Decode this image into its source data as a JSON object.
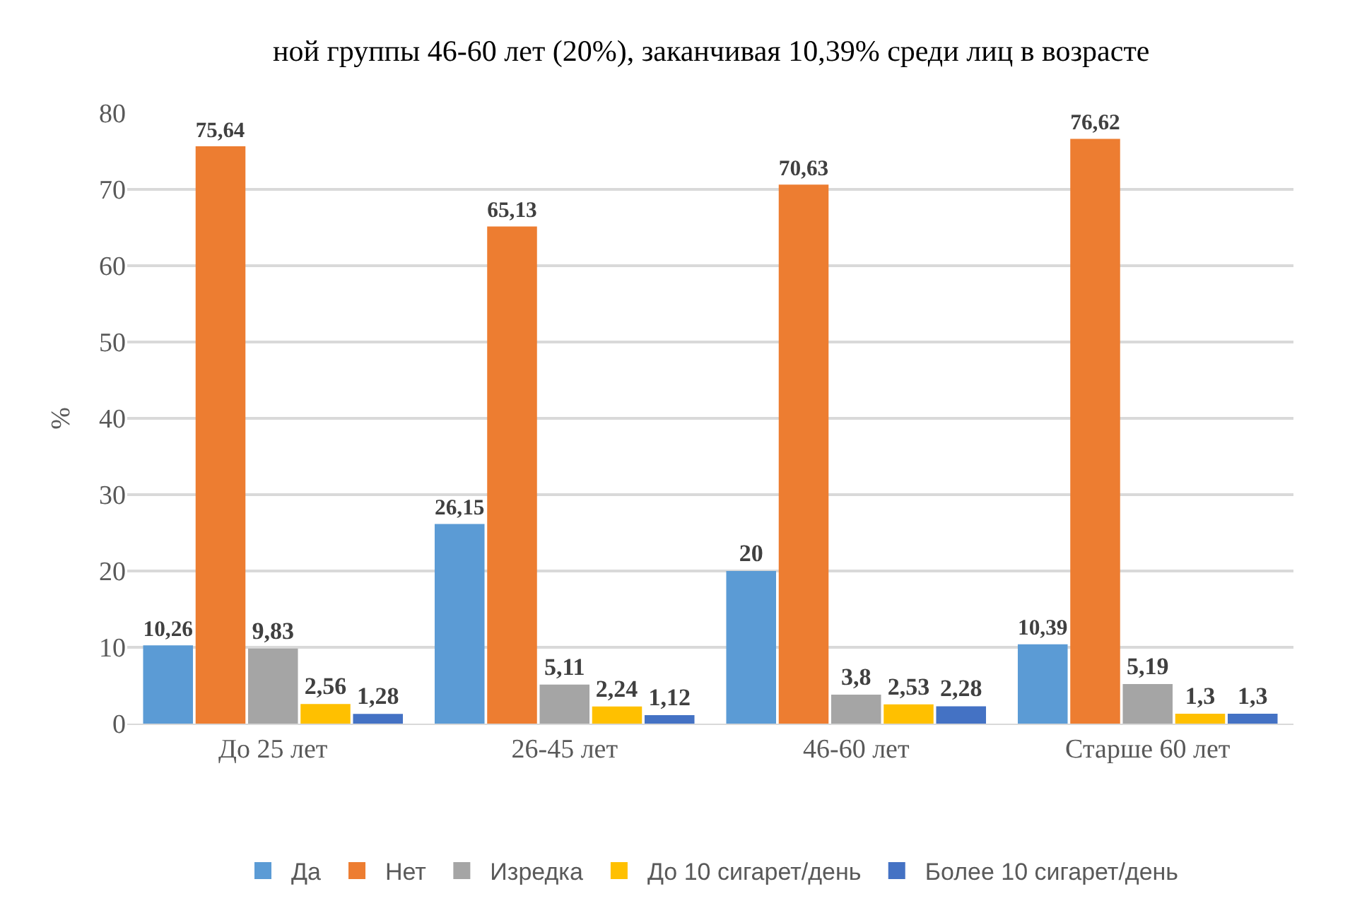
{
  "chart_data": {
    "type": "bar",
    "ylabel": "%",
    "categories": [
      "До 25 лет",
      "26-45 лет",
      "46-60 лет",
      "Старше 60 лет"
    ],
    "series": [
      {
        "name": "Да",
        "color": "#5b9bd5",
        "values": [
          10.26,
          26.15,
          20,
          10.39
        ],
        "value_labels": [
          "10,26",
          "26,15",
          "20",
          "10,39"
        ]
      },
      {
        "name": "Нет",
        "color": "#ed7d31",
        "values": [
          75.64,
          65.13,
          70.63,
          76.62
        ],
        "value_labels": [
          "75,64",
          "65,13",
          "70,63",
          "76,62"
        ]
      },
      {
        "name": "Изредка",
        "color": "#a5a5a5",
        "values": [
          9.83,
          5.11,
          3.8,
          5.19
        ],
        "value_labels": [
          "9,83",
          "5,11",
          "3,8",
          "5,19"
        ]
      },
      {
        "name": "До 10 сигарет/день",
        "color": "#ffc000",
        "values": [
          2.56,
          2.24,
          2.53,
          1.3
        ],
        "value_labels": [
          "2,56",
          "2,24",
          "2,53",
          "1,3"
        ]
      },
      {
        "name": "Более 10 сигарет/день",
        "color": "#4472c4",
        "values": [
          1.28,
          1.12,
          2.28,
          1.3
        ],
        "value_labels": [
          "1,28",
          "1,12",
          "2,28",
          "1,3"
        ]
      }
    ],
    "ylim": [
      0,
      80
    ],
    "yticks": [
      0,
      10,
      20,
      30,
      40,
      50,
      60,
      70,
      80
    ],
    "grid": "y",
    "legend": "bottom",
    "annotations": [
      "ной группы 46-60 лет (20%), заканчивая 10,39% среди лиц в возрасте"
    ]
  }
}
